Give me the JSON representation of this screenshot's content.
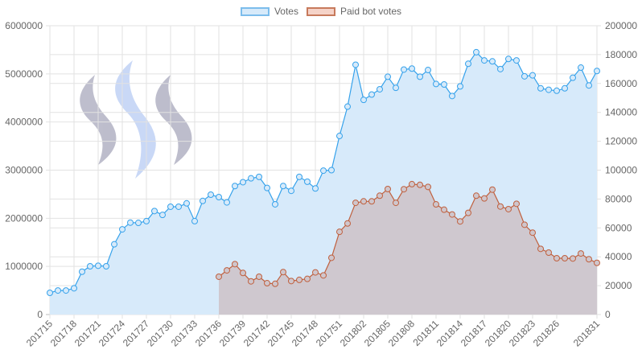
{
  "chart_data": {
    "type": "line",
    "title": "",
    "legend_position": "top",
    "x": [
      "201715",
      "201716",
      "201717",
      "201718",
      "201719",
      "201720",
      "201721",
      "201722",
      "201723",
      "201724",
      "201725",
      "201726",
      "201727",
      "201728",
      "201729",
      "201730",
      "201731",
      "201732",
      "201733",
      "201734",
      "201735",
      "201736",
      "201737",
      "201738",
      "201739",
      "201740",
      "201741",
      "201742",
      "201743",
      "201744",
      "201745",
      "201746",
      "201747",
      "201748",
      "201749",
      "201750",
      "201751",
      "201752",
      "201801",
      "201802",
      "201803",
      "201804",
      "201805",
      "201806",
      "201807",
      "201808",
      "201809",
      "201810",
      "201811",
      "201812",
      "201813",
      "201814",
      "201815",
      "201816",
      "201817",
      "201818",
      "201819",
      "201820",
      "201821",
      "201822",
      "201823",
      "201824",
      "201825",
      "201826",
      "201827",
      "201828",
      "201829",
      "201830",
      "201831"
    ],
    "x_tick_labels": [
      "201715",
      "201718",
      "201721",
      "201724",
      "201727",
      "201730",
      "201733",
      "201736",
      "201739",
      "201742",
      "201745",
      "201748",
      "201751",
      "201802",
      "201805",
      "201808",
      "201811",
      "201814",
      "201817",
      "201820",
      "201823",
      "201826",
      "201831"
    ],
    "y_left": {
      "range": [
        0,
        6000000
      ],
      "ticks": [
        "0",
        "1000000",
        "2000000",
        "3000000",
        "4000000",
        "5000000",
        "6000000"
      ]
    },
    "y_right": {
      "range": [
        0,
        200000
      ],
      "ticks": [
        "0",
        "20000",
        "40000",
        "60000",
        "80000",
        "100000",
        "120000",
        "140000",
        "160000",
        "180000",
        "200000"
      ]
    },
    "grid": true,
    "series": [
      {
        "name": "Votes",
        "axis": "left",
        "color": "#36a2eb",
        "fill": "#d7eafa",
        "values": [
          451000,
          500000,
          500000,
          546000,
          890000,
          1003000,
          1014000,
          1003000,
          1460000,
          1770000,
          1910000,
          1905000,
          1940000,
          2150000,
          2070000,
          2240000,
          2240000,
          2310000,
          1940000,
          2360000,
          2490000,
          2440000,
          2330000,
          2670000,
          2750000,
          2830000,
          2860000,
          2630000,
          2290000,
          2670000,
          2570000,
          2860000,
          2760000,
          2620000,
          2990000,
          3000000,
          3710000,
          4320000,
          5190000,
          4460000,
          4570000,
          4680000,
          4940000,
          4710000,
          5090000,
          5110000,
          4940000,
          5080000,
          4790000,
          4780000,
          4540000,
          4740000,
          5210000,
          5450000,
          5280000,
          5260000,
          5100000,
          5310000,
          5280000,
          4950000,
          4970000,
          4700000,
          4670000,
          4650000,
          4700000,
          4920000,
          5130000,
          4760000,
          5060000
        ]
      },
      {
        "name": "Paid bot votes",
        "axis": "right",
        "color": "#c0603e",
        "fill": "#cfc6cc",
        "values": [
          null,
          null,
          null,
          null,
          null,
          null,
          null,
          null,
          null,
          null,
          null,
          null,
          null,
          null,
          null,
          null,
          null,
          null,
          null,
          null,
          null,
          26200,
          30600,
          34900,
          28800,
          23000,
          26200,
          21700,
          21300,
          29400,
          23200,
          24000,
          24700,
          29200,
          27100,
          39300,
          57300,
          63100,
          77400,
          78400,
          78400,
          82300,
          86900,
          77400,
          86800,
          90300,
          89800,
          88400,
          76300,
          72600,
          69300,
          64500,
          70400,
          82300,
          80400,
          86500,
          74800,
          73000,
          76700,
          62200,
          56700,
          45500,
          42900,
          39000,
          39000,
          38800,
          42300,
          38300,
          35800
        ]
      }
    ]
  },
  "legend": {
    "votes": "Votes",
    "paid": "Paid bot votes"
  }
}
